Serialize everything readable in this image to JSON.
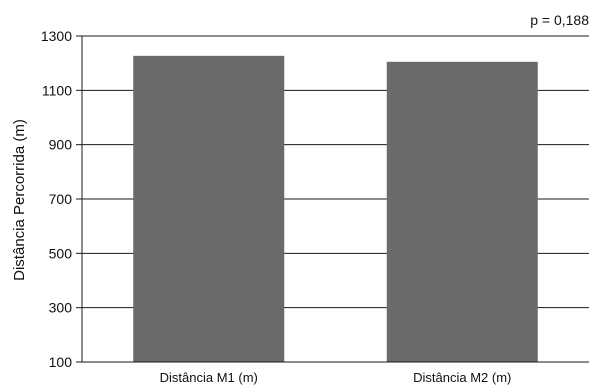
{
  "chart_data": {
    "type": "bar",
    "categories": [
      "Distância M1 (m)",
      "Distância M2 (m)"
    ],
    "values": [
      1227,
      1205
    ],
    "ylabel": "Distância Percorrida (m)",
    "xlabel": "",
    "ylim": [
      100,
      1300
    ],
    "yticks": [
      100,
      300,
      500,
      700,
      900,
      1100,
      1300
    ],
    "ytick_labels": [
      "100",
      "300",
      "500",
      "700",
      "900",
      "1100",
      "1300"
    ],
    "annotation": "p = 0,188",
    "grid": true,
    "bar_color": "#696a6c"
  }
}
